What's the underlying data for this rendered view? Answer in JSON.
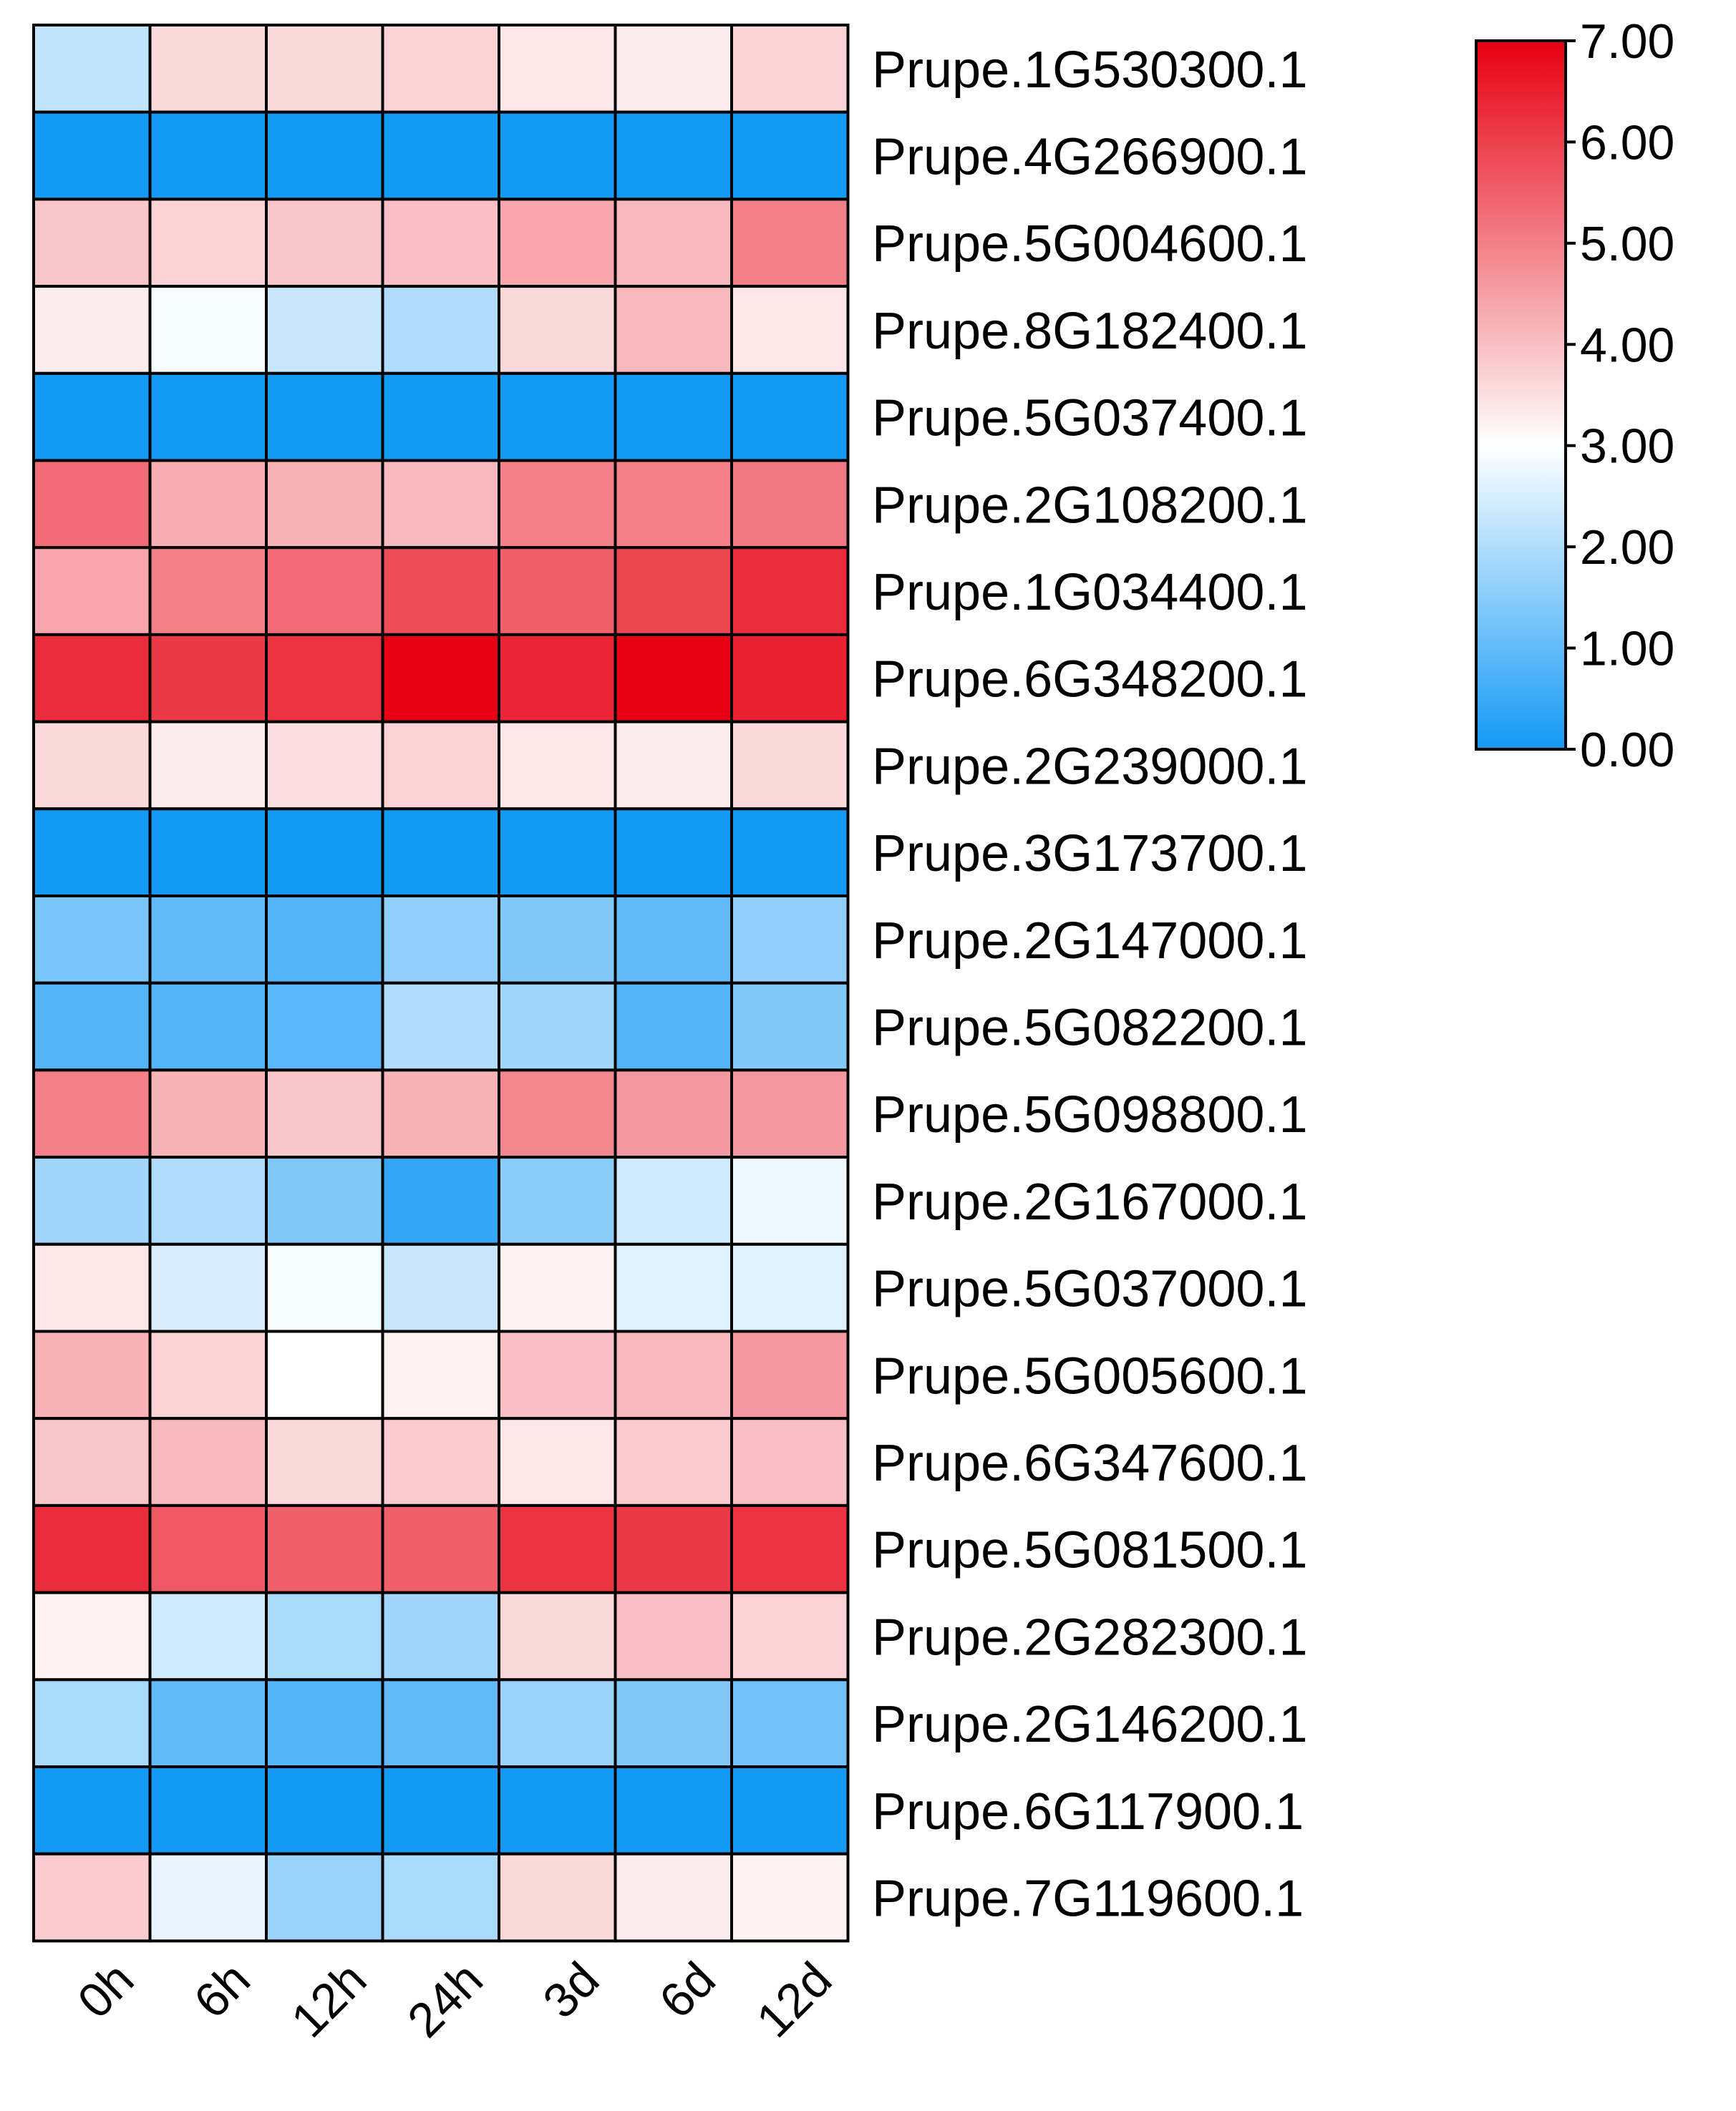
{
  "chart_data": {
    "type": "heatmap",
    "columns": [
      "0h",
      "6h",
      "12h",
      "24h",
      "3d",
      "6d",
      "12d"
    ],
    "rows": [
      "Prupe.1G530300.1",
      "Prupe.4G266900.1",
      "Prupe.5G004600.1",
      "Prupe.8G182400.1",
      "Prupe.5G037400.1",
      "Prupe.2G108200.1",
      "Prupe.1G034400.1",
      "Prupe.6G348200.1",
      "Prupe.2G239000.1",
      "Prupe.3G173700.1",
      "Prupe.2G147000.1",
      "Prupe.5G082200.1",
      "Prupe.5G098800.1",
      "Prupe.2G167000.1",
      "Prupe.5G037000.1",
      "Prupe.5G005600.1",
      "Prupe.6G347600.1",
      "Prupe.5G081500.1",
      "Prupe.2G282300.1",
      "Prupe.2G146200.1",
      "Prupe.6G117900.1",
      "Prupe.7G119600.1"
    ],
    "values": [
      [
        2.2,
        3.6,
        3.6,
        3.7,
        3.4,
        3.3,
        3.7
      ],
      [
        0.0,
        0.0,
        0.0,
        0.0,
        0.0,
        0.0,
        0.0
      ],
      [
        3.9,
        3.7,
        3.9,
        4.0,
        4.4,
        4.1,
        5.0
      ],
      [
        3.3,
        2.9,
        2.3,
        2.0,
        3.6,
        4.1,
        3.4
      ],
      [
        0.0,
        0.0,
        0.0,
        0.0,
        0.0,
        0.0,
        0.0
      ],
      [
        5.3,
        4.3,
        4.2,
        4.1,
        5.0,
        5.0,
        5.1
      ],
      [
        4.4,
        5.0,
        5.3,
        5.8,
        5.5,
        5.9,
        6.3
      ],
      [
        6.3,
        6.1,
        6.2,
        7.0,
        6.4,
        7.0,
        6.5
      ],
      [
        3.6,
        3.3,
        3.5,
        3.7,
        3.4,
        3.3,
        3.6
      ],
      [
        0.0,
        0.0,
        0.0,
        0.0,
        0.0,
        0.0,
        0.0
      ],
      [
        1.3,
        1.0,
        0.8,
        1.6,
        1.4,
        1.0,
        1.6
      ],
      [
        0.8,
        0.8,
        0.9,
        2.0,
        1.8,
        0.8,
        1.4
      ],
      [
        5.0,
        4.2,
        3.9,
        4.2,
        4.9,
        4.6,
        4.6
      ],
      [
        1.8,
        2.0,
        1.4,
        0.4,
        1.5,
        2.4,
        2.8
      ],
      [
        3.4,
        2.5,
        2.9,
        2.3,
        3.2,
        2.6,
        2.6
      ],
      [
        4.2,
        3.7,
        3.0,
        3.2,
        4.0,
        4.1,
        4.6
      ],
      [
        3.9,
        4.1,
        3.6,
        3.8,
        3.4,
        3.8,
        4.0
      ],
      [
        6.3,
        5.6,
        5.5,
        5.5,
        6.2,
        6.1,
        6.2
      ],
      [
        3.2,
        2.4,
        1.9,
        1.8,
        3.6,
        4.0,
        3.7
      ],
      [
        1.9,
        1.0,
        0.8,
        1.0,
        1.7,
        1.4,
        1.2
      ],
      [
        0.0,
        0.0,
        0.0,
        0.0,
        0.0,
        0.0,
        0.0
      ],
      [
        3.8,
        2.7,
        1.7,
        1.9,
        3.6,
        3.3,
        3.2
      ]
    ],
    "colorbar": {
      "min": 0,
      "max": 7,
      "ticks": [
        "0.00",
        "1.00",
        "2.00",
        "3.00",
        "4.00",
        "5.00",
        "6.00",
        "7.00"
      ],
      "colors": {
        "low": "#1499f5",
        "mid": "#ffffff",
        "high": "#e60012"
      }
    }
  }
}
